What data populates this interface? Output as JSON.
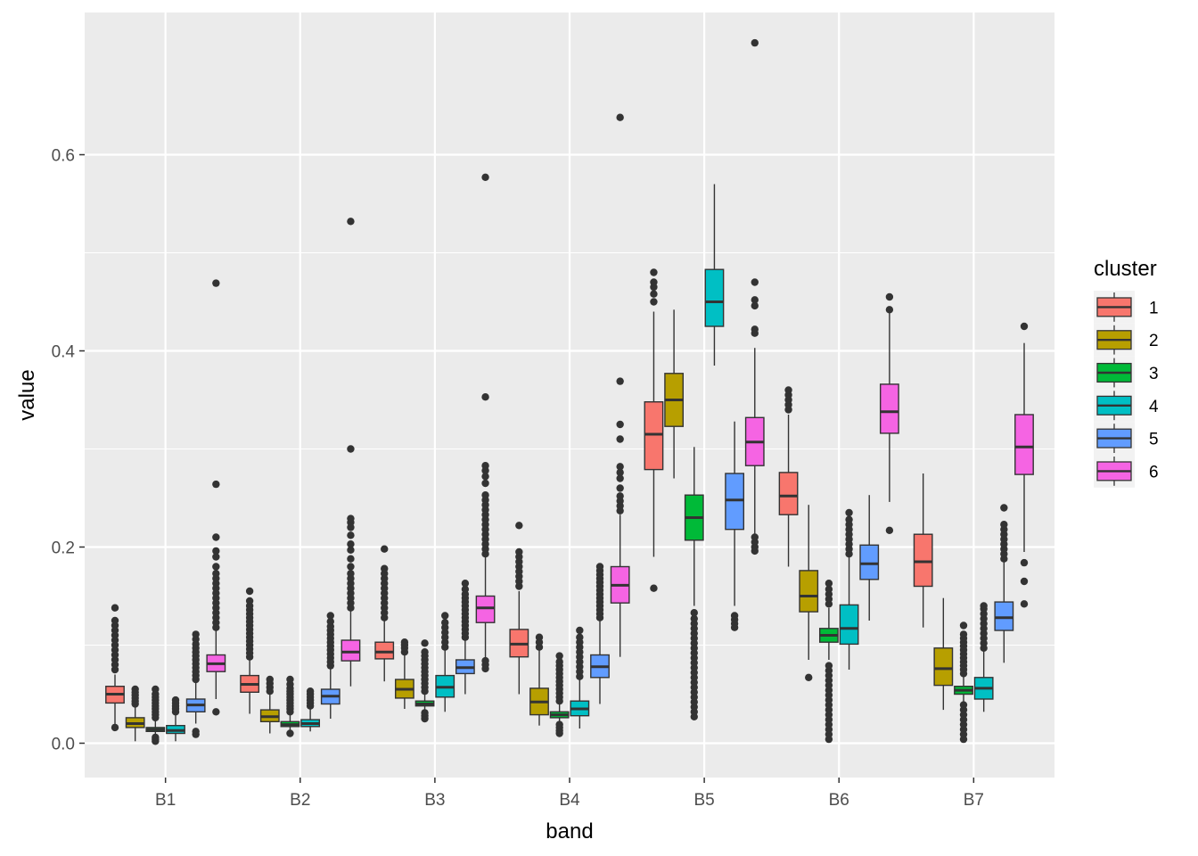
{
  "chart_data": {
    "type": "boxplot",
    "xlabel": "band",
    "ylabel": "value",
    "categories": [
      "B1",
      "B2",
      "B3",
      "B4",
      "B5",
      "B6",
      "B7"
    ],
    "y_ticks": [
      0.0,
      0.2,
      0.4,
      0.6
    ],
    "y_tick_labels": [
      "0.0",
      "0.2",
      "0.4",
      "0.6"
    ],
    "ylim": [
      -0.035,
      0.745
    ],
    "grid": true,
    "legend": {
      "title": "cluster",
      "position": "right",
      "entries": [
        "1",
        "2",
        "3",
        "4",
        "5",
        "6"
      ]
    },
    "colors": [
      "#F8766D",
      "#B79F00",
      "#00BA38",
      "#00BFC4",
      "#619CFF",
      "#F564E3"
    ],
    "panel_background": "#EBEBEB",
    "series": [
      {
        "name": "1",
        "boxes": [
          {
            "q1": 0.041,
            "median": 0.05,
            "q3": 0.058,
            "lower": 0.016,
            "upper": 0.07,
            "outliers": [
              0.016,
              0.075,
              0.08,
              0.085,
              0.09,
              0.095,
              0.1,
              0.105,
              0.11,
              0.115,
              0.12,
              0.125,
              0.138
            ]
          },
          {
            "q1": 0.052,
            "median": 0.06,
            "q3": 0.069,
            "lower": 0.03,
            "upper": 0.085,
            "outliers": [
              0.088,
              0.092,
              0.096,
              0.1,
              0.104,
              0.108,
              0.112,
              0.116,
              0.12,
              0.124,
              0.128,
              0.132,
              0.136,
              0.14,
              0.145,
              0.155
            ]
          },
          {
            "q1": 0.086,
            "median": 0.093,
            "q3": 0.103,
            "lower": 0.063,
            "upper": 0.125,
            "outliers": [
              0.128,
              0.133,
              0.138,
              0.143,
              0.148,
              0.153,
              0.158,
              0.163,
              0.168,
              0.173,
              0.178,
              0.198
            ]
          },
          {
            "q1": 0.088,
            "median": 0.101,
            "q3": 0.116,
            "lower": 0.05,
            "upper": 0.155,
            "outliers": [
              0.16,
              0.165,
              0.17,
              0.175,
              0.18,
              0.185,
              0.19,
              0.195,
              0.222
            ]
          },
          {
            "q1": 0.279,
            "median": 0.315,
            "q3": 0.348,
            "lower": 0.19,
            "upper": 0.44,
            "outliers": [
              0.158,
              0.45,
              0.458,
              0.465,
              0.47,
              0.48
            ]
          },
          {
            "q1": 0.233,
            "median": 0.252,
            "q3": 0.276,
            "lower": 0.18,
            "upper": 0.335,
            "outliers": [
              0.34,
              0.345,
              0.35,
              0.355,
              0.36
            ]
          },
          {
            "q1": 0.16,
            "median": 0.185,
            "q3": 0.213,
            "lower": 0.118,
            "upper": 0.275,
            "outliers": []
          }
        ]
      },
      {
        "name": "2",
        "boxes": [
          {
            "q1": 0.016,
            "median": 0.02,
            "q3": 0.026,
            "lower": 0.002,
            "upper": 0.038,
            "outliers": [
              0.04,
              0.043,
              0.046,
              0.049,
              0.052,
              0.055
            ]
          },
          {
            "q1": 0.022,
            "median": 0.027,
            "q3": 0.034,
            "lower": 0.01,
            "upper": 0.05,
            "outliers": [
              0.053,
              0.057,
              0.061,
              0.065
            ]
          },
          {
            "q1": 0.046,
            "median": 0.055,
            "q3": 0.065,
            "lower": 0.035,
            "upper": 0.09,
            "outliers": [
              0.093,
              0.097,
              0.1,
              0.103
            ]
          },
          {
            "q1": 0.029,
            "median": 0.042,
            "q3": 0.056,
            "lower": 0.018,
            "upper": 0.095,
            "outliers": [
              0.098,
              0.103,
              0.108
            ]
          },
          {
            "q1": 0.323,
            "median": 0.35,
            "q3": 0.377,
            "lower": 0.27,
            "upper": 0.442,
            "outliers": []
          },
          {
            "q1": 0.134,
            "median": 0.15,
            "q3": 0.176,
            "lower": 0.085,
            "upper": 0.243,
            "outliers": [
              0.067
            ]
          },
          {
            "q1": 0.059,
            "median": 0.076,
            "q3": 0.097,
            "lower": 0.034,
            "upper": 0.148,
            "outliers": []
          }
        ]
      },
      {
        "name": "3",
        "boxes": [
          {
            "q1": 0.012,
            "median": 0.014,
            "q3": 0.016,
            "lower": 0.004,
            "upper": 0.024,
            "outliers": [
              0.002,
              0.004,
              0.006,
              0.026,
              0.029,
              0.032,
              0.035,
              0.038,
              0.041,
              0.044,
              0.047,
              0.05,
              0.055
            ]
          },
          {
            "q1": 0.017,
            "median": 0.019,
            "q3": 0.022,
            "lower": 0.012,
            "upper": 0.03,
            "outliers": [
              0.01,
              0.032,
              0.035,
              0.038,
              0.041,
              0.044,
              0.047,
              0.05,
              0.053,
              0.056,
              0.06,
              0.065
            ]
          },
          {
            "q1": 0.038,
            "median": 0.04,
            "q3": 0.043,
            "lower": 0.033,
            "upper": 0.05,
            "outliers": [
              0.025,
              0.028,
              0.031,
              0.053,
              0.057,
              0.061,
              0.065,
              0.069,
              0.073,
              0.077,
              0.081,
              0.085,
              0.089,
              0.093,
              0.102
            ]
          },
          {
            "q1": 0.026,
            "median": 0.029,
            "q3": 0.032,
            "lower": 0.02,
            "upper": 0.04,
            "outliers": [
              0.01,
              0.013,
              0.016,
              0.019,
              0.043,
              0.047,
              0.051,
              0.055,
              0.059,
              0.063,
              0.067,
              0.071,
              0.075,
              0.079,
              0.083,
              0.089
            ]
          },
          {
            "q1": 0.207,
            "median": 0.23,
            "q3": 0.253,
            "lower": 0.14,
            "upper": 0.302,
            "outliers": [
              0.027,
              0.032,
              0.037,
              0.042,
              0.047,
              0.052,
              0.057,
              0.062,
              0.067,
              0.072,
              0.077,
              0.082,
              0.087,
              0.092,
              0.097,
              0.102,
              0.107,
              0.112,
              0.117,
              0.122,
              0.127,
              0.133
            ]
          },
          {
            "q1": 0.103,
            "median": 0.11,
            "q3": 0.117,
            "lower": 0.085,
            "upper": 0.138,
            "outliers": [
              0.004,
              0.009,
              0.014,
              0.019,
              0.024,
              0.029,
              0.034,
              0.039,
              0.044,
              0.049,
              0.054,
              0.059,
              0.064,
              0.069,
              0.074,
              0.079,
              0.142,
              0.147,
              0.152,
              0.157,
              0.163
            ]
          },
          {
            "q1": 0.05,
            "median": 0.054,
            "q3": 0.058,
            "lower": 0.042,
            "upper": 0.068,
            "outliers": [
              0.004,
              0.009,
              0.014,
              0.019,
              0.024,
              0.029,
              0.034,
              0.039,
              0.071,
              0.075,
              0.079,
              0.083,
              0.087,
              0.091,
              0.095,
              0.099,
              0.103,
              0.107,
              0.111,
              0.12
            ]
          }
        ]
      },
      {
        "name": "4",
        "boxes": [
          {
            "q1": 0.01,
            "median": 0.013,
            "q3": 0.018,
            "lower": 0.002,
            "upper": 0.03,
            "outliers": [
              0.032,
              0.035,
              0.038,
              0.041,
              0.044
            ]
          },
          {
            "q1": 0.017,
            "median": 0.02,
            "q3": 0.024,
            "lower": 0.012,
            "upper": 0.035,
            "outliers": [
              0.038,
              0.041,
              0.044,
              0.047,
              0.05,
              0.053
            ]
          },
          {
            "q1": 0.047,
            "median": 0.057,
            "q3": 0.069,
            "lower": 0.032,
            "upper": 0.095,
            "outliers": [
              0.098,
              0.103,
              0.108,
              0.113,
              0.118,
              0.123,
              0.13
            ]
          },
          {
            "q1": 0.028,
            "median": 0.035,
            "q3": 0.043,
            "lower": 0.015,
            "upper": 0.065,
            "outliers": [
              0.068,
              0.073,
              0.078,
              0.083,
              0.088,
              0.093,
              0.098,
              0.103,
              0.108,
              0.115
            ]
          },
          {
            "q1": 0.425,
            "median": 0.45,
            "q3": 0.483,
            "lower": 0.385,
            "upper": 0.57,
            "outliers": []
          },
          {
            "q1": 0.101,
            "median": 0.117,
            "q3": 0.141,
            "lower": 0.075,
            "upper": 0.19,
            "outliers": [
              0.193,
              0.198,
              0.203,
              0.208,
              0.213,
              0.218,
              0.223,
              0.228,
              0.235
            ]
          },
          {
            "q1": 0.045,
            "median": 0.056,
            "q3": 0.067,
            "lower": 0.032,
            "upper": 0.094,
            "outliers": [
              0.097,
              0.102,
              0.107,
              0.112,
              0.117,
              0.122,
              0.127,
              0.132,
              0.137,
              0.14
            ]
          }
        ]
      },
      {
        "name": "5",
        "boxes": [
          {
            "q1": 0.032,
            "median": 0.039,
            "q3": 0.045,
            "lower": 0.02,
            "upper": 0.062,
            "outliers": [
              0.009,
              0.012,
              0.065,
              0.069,
              0.073,
              0.077,
              0.081,
              0.085,
              0.089,
              0.093,
              0.097,
              0.101,
              0.106,
              0.111
            ]
          },
          {
            "q1": 0.04,
            "median": 0.048,
            "q3": 0.055,
            "lower": 0.025,
            "upper": 0.076,
            "outliers": [
              0.079,
              0.083,
              0.087,
              0.091,
              0.095,
              0.099,
              0.103,
              0.107,
              0.111,
              0.115,
              0.119,
              0.124,
              0.13
            ]
          },
          {
            "q1": 0.071,
            "median": 0.077,
            "q3": 0.085,
            "lower": 0.05,
            "upper": 0.105,
            "outliers": [
              0.108,
              0.112,
              0.116,
              0.12,
              0.124,
              0.128,
              0.132,
              0.136,
              0.14,
              0.144,
              0.148,
              0.152,
              0.157,
              0.163
            ]
          },
          {
            "q1": 0.067,
            "median": 0.078,
            "q3": 0.09,
            "lower": 0.04,
            "upper": 0.125,
            "outliers": [
              0.128,
              0.132,
              0.136,
              0.14,
              0.144,
              0.148,
              0.152,
              0.156,
              0.16,
              0.164,
              0.168,
              0.172,
              0.176,
              0.18
            ]
          },
          {
            "q1": 0.218,
            "median": 0.248,
            "q3": 0.275,
            "lower": 0.14,
            "upper": 0.328,
            "outliers": [
              0.118,
              0.122,
              0.126,
              0.13
            ]
          },
          {
            "q1": 0.167,
            "median": 0.183,
            "q3": 0.202,
            "lower": 0.125,
            "upper": 0.253,
            "outliers": []
          },
          {
            "q1": 0.115,
            "median": 0.128,
            "q3": 0.144,
            "lower": 0.082,
            "upper": 0.185,
            "outliers": [
              0.188,
              0.193,
              0.198,
              0.203,
              0.208,
              0.213,
              0.218,
              0.223,
              0.24
            ]
          }
        ]
      },
      {
        "name": "6",
        "boxes": [
          {
            "q1": 0.073,
            "median": 0.081,
            "q3": 0.09,
            "lower": 0.045,
            "upper": 0.115,
            "outliers": [
              0.032,
              0.118,
              0.123,
              0.128,
              0.133,
              0.138,
              0.143,
              0.148,
              0.153,
              0.158,
              0.163,
              0.168,
              0.173,
              0.18,
              0.19,
              0.196,
              0.21,
              0.264,
              0.469
            ]
          },
          {
            "q1": 0.084,
            "median": 0.093,
            "q3": 0.105,
            "lower": 0.058,
            "upper": 0.135,
            "outliers": [
              0.138,
              0.143,
              0.148,
              0.153,
              0.158,
              0.163,
              0.168,
              0.173,
              0.18,
              0.188,
              0.197,
              0.203,
              0.212,
              0.22,
              0.225,
              0.229,
              0.3,
              0.532
            ]
          },
          {
            "q1": 0.123,
            "median": 0.138,
            "q3": 0.15,
            "lower": 0.085,
            "upper": 0.19,
            "outliers": [
              0.076,
              0.08,
              0.084,
              0.193,
              0.198,
              0.203,
              0.208,
              0.213,
              0.218,
              0.223,
              0.228,
              0.233,
              0.238,
              0.243,
              0.248,
              0.253,
              0.265,
              0.272,
              0.278,
              0.283,
              0.353,
              0.577
            ]
          },
          {
            "q1": 0.143,
            "median": 0.161,
            "q3": 0.18,
            "lower": 0.088,
            "upper": 0.233,
            "outliers": [
              0.237,
              0.242,
              0.247,
              0.252,
              0.26,
              0.27,
              0.276,
              0.282,
              0.31,
              0.325,
              0.369,
              0.638
            ]
          },
          {
            "q1": 0.283,
            "median": 0.307,
            "q3": 0.332,
            "lower": 0.213,
            "upper": 0.403,
            "outliers": [
              0.196,
              0.2,
              0.205,
              0.21,
              0.418,
              0.422,
              0.446,
              0.452,
              0.47,
              0.714
            ]
          },
          {
            "q1": 0.316,
            "median": 0.338,
            "q3": 0.366,
            "lower": 0.246,
            "upper": 0.44,
            "outliers": [
              0.217,
              0.442,
              0.455
            ]
          },
          {
            "q1": 0.274,
            "median": 0.302,
            "q3": 0.335,
            "lower": 0.195,
            "upper": 0.408,
            "outliers": [
              0.142,
              0.165,
              0.184,
              0.425
            ]
          }
        ]
      }
    ]
  }
}
